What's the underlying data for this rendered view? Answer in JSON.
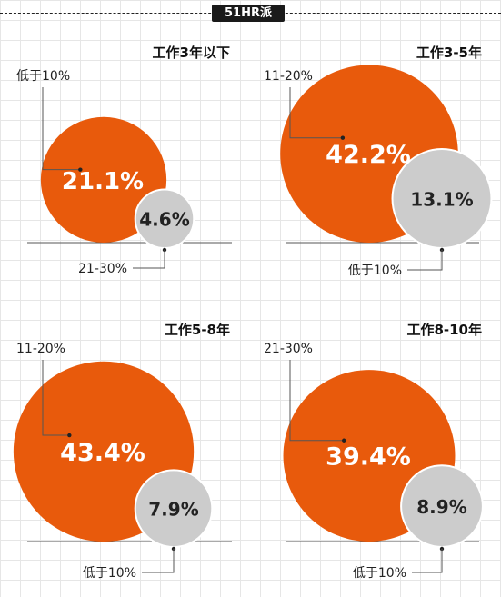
{
  "brand": "51HR派",
  "colors": {
    "major": "#E85A0C",
    "minor": "#CCCCCC",
    "ink": "#222222",
    "line": "#555555"
  },
  "chart_data": [
    {
      "type": "bubble",
      "title": "工作3年以下",
      "series": [
        {
          "name": "低于10%",
          "value": 21.1,
          "label": "21.1%"
        },
        {
          "name": "21-30%",
          "value": 4.6,
          "label": "4.6%"
        }
      ]
    },
    {
      "type": "bubble",
      "title": "工作3-5年",
      "series": [
        {
          "name": "11-20%",
          "value": 42.2,
          "label": "42.2%"
        },
        {
          "name": "低于10%",
          "value": 13.1,
          "label": "13.1%"
        }
      ]
    },
    {
      "type": "bubble",
      "title": "工作5-8年",
      "series": [
        {
          "name": "11-20%",
          "value": 43.4,
          "label": "43.4%"
        },
        {
          "name": "低于10%",
          "value": 7.9,
          "label": "7.9%"
        }
      ]
    },
    {
      "type": "bubble",
      "title": "工作8-10年",
      "series": [
        {
          "name": "21-30%",
          "value": 39.4,
          "label": "39.4%"
        },
        {
          "name": "低于10%",
          "value": 8.9,
          "label": "8.9%"
        }
      ]
    }
  ]
}
